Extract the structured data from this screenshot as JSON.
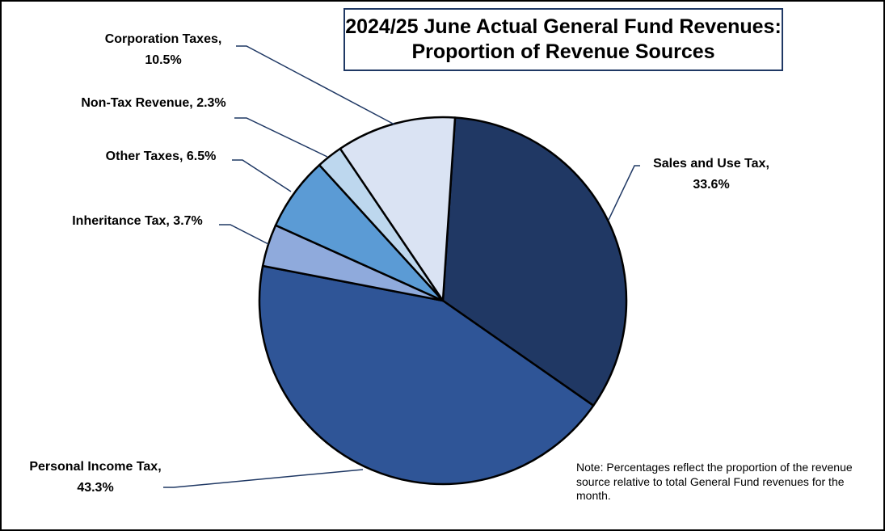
{
  "title": {
    "line1": "2024/25 June Actual General Fund Revenues:",
    "line2": "Proportion of Revenue Sources"
  },
  "note": "Note: Percentages reflect the proportion of the revenue source relative to total General Fund revenues for the month.",
  "chart_data": {
    "type": "pie",
    "title": "2024/25 June Actual General Fund Revenues: Proportion of Revenue Sources",
    "slices": [
      {
        "name": "Sales and Use Tax",
        "value": 33.6,
        "label_lines": [
          "Sales and Use Tax,",
          "33.6%"
        ],
        "color": "#203864"
      },
      {
        "name": "Personal Income Tax",
        "value": 43.3,
        "label_lines": [
          "Personal Income Tax,",
          "43.3%"
        ],
        "color": "#2f5597"
      },
      {
        "name": "Inheritance Tax",
        "value": 3.7,
        "label_lines": [
          "Inheritance Tax, 3.7%"
        ],
        "color": "#8faadc"
      },
      {
        "name": "Other Taxes",
        "value": 6.5,
        "label_lines": [
          "Other Taxes, 6.5%"
        ],
        "color": "#5b9bd5"
      },
      {
        "name": "Non-Tax Revenue",
        "value": 2.3,
        "label_lines": [
          "Non-Tax Revenue, 2.3%"
        ],
        "color": "#bdd7ee"
      },
      {
        "name": "Corporation Taxes",
        "value": 10.5,
        "label_lines": [
          "Corporation Taxes,",
          "10.5%"
        ],
        "color": "#dae3f3"
      }
    ]
  }
}
